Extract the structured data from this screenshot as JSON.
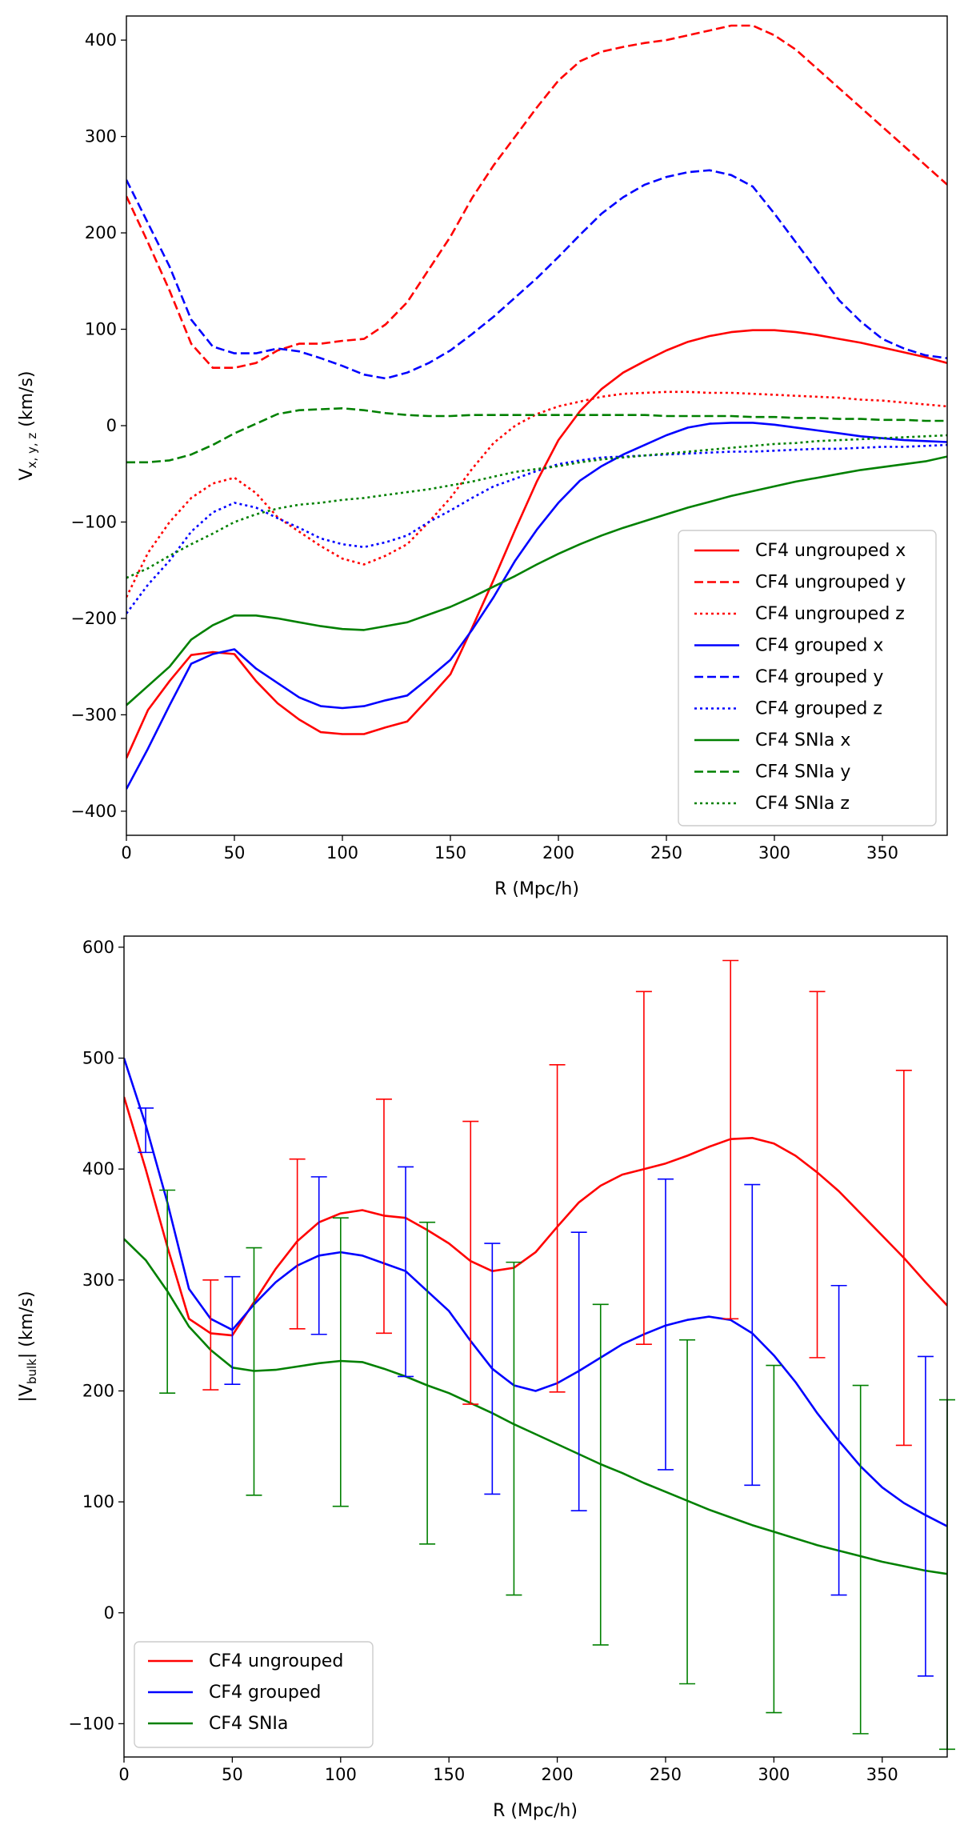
{
  "chart_data": [
    {
      "type": "line",
      "title": "",
      "xlabel": "R (Mpc/h)",
      "ylabel": {
        "main": "V",
        "sub": "x, y, z",
        "suffix": " (km/s)"
      },
      "xlim": [
        0,
        380
      ],
      "ylim": [
        -425,
        425
      ],
      "xticks": [
        0,
        50,
        100,
        150,
        200,
        250,
        300,
        350
      ],
      "yticks": [
        -400,
        -300,
        -200,
        -100,
        0,
        100,
        200,
        300,
        400
      ],
      "grid": false,
      "legend_position": "lower-right",
      "x": [
        0,
        10,
        20,
        30,
        40,
        50,
        60,
        70,
        80,
        90,
        100,
        110,
        120,
        130,
        140,
        150,
        160,
        170,
        180,
        190,
        200,
        210,
        220,
        230,
        240,
        250,
        260,
        270,
        280,
        290,
        300,
        310,
        320,
        330,
        340,
        350,
        360,
        370,
        380
      ],
      "series": [
        {
          "name": "CF4 ungrouped x",
          "color": "#ff0000",
          "dash": "solid",
          "values": [
            -345,
            -295,
            -265,
            -238,
            -235,
            -237,
            -265,
            -288,
            -305,
            -318,
            -320,
            -320,
            -313,
            -307,
            -283,
            -258,
            -210,
            -160,
            -108,
            -58,
            -15,
            15,
            38,
            55,
            67,
            78,
            87,
            93,
            97,
            99,
            99,
            97,
            94,
            90,
            86,
            81,
            76,
            71,
            65
          ]
        },
        {
          "name": "CF4 ungrouped y",
          "color": "#ff0000",
          "dash": "dashed",
          "values": [
            238,
            190,
            140,
            85,
            60,
            60,
            65,
            78,
            85,
            85,
            88,
            90,
            105,
            128,
            162,
            196,
            236,
            270,
            300,
            330,
            358,
            378,
            388,
            393,
            397,
            400,
            405,
            410,
            415,
            415,
            405,
            390,
            370,
            350,
            330,
            310,
            290,
            270,
            250
          ]
        },
        {
          "name": "CF4 ungrouped z",
          "color": "#ff0000",
          "dash": "dotted",
          "values": [
            -178,
            -132,
            -100,
            -75,
            -60,
            -54,
            -70,
            -95,
            -110,
            -125,
            -138,
            -144,
            -135,
            -123,
            -100,
            -75,
            -45,
            -18,
            0,
            12,
            20,
            25,
            30,
            33,
            34,
            35,
            35,
            34,
            34,
            33,
            32,
            31,
            30,
            29,
            27,
            26,
            24,
            22,
            20
          ]
        },
        {
          "name": "CF4 grouped x",
          "color": "#0000ff",
          "dash": "solid",
          "values": [
            -377,
            -335,
            -290,
            -247,
            -237,
            -232,
            -252,
            -267,
            -282,
            -291,
            -293,
            -291,
            -285,
            -280,
            -262,
            -243,
            -212,
            -178,
            -140,
            -108,
            -80,
            -57,
            -42,
            -30,
            -20,
            -10,
            -2,
            2,
            3,
            3,
            1,
            -2,
            -5,
            -8,
            -11,
            -13,
            -15,
            -16,
            -17
          ]
        },
        {
          "name": "CF4 grouped y",
          "color": "#0000ff",
          "dash": "dashed",
          "values": [
            255,
            210,
            165,
            110,
            82,
            75,
            75,
            80,
            77,
            70,
            62,
            53,
            49,
            55,
            65,
            78,
            95,
            113,
            133,
            153,
            175,
            198,
            220,
            237,
            250,
            258,
            263,
            265,
            260,
            248,
            220,
            190,
            160,
            130,
            108,
            90,
            80,
            73,
            70
          ]
        },
        {
          "name": "CF4 grouped z",
          "color": "#0000ff",
          "dash": "dotted",
          "values": [
            -195,
            -165,
            -140,
            -110,
            -90,
            -80,
            -85,
            -96,
            -106,
            -117,
            -123,
            -126,
            -121,
            -114,
            -100,
            -88,
            -75,
            -63,
            -55,
            -47,
            -40,
            -36,
            -33,
            -32,
            -31,
            -30,
            -29,
            -28,
            -27,
            -27,
            -26,
            -25,
            -24,
            -24,
            -23,
            -22,
            -22,
            -21,
            -20
          ]
        },
        {
          "name": "CF4 SNIa x",
          "color": "#008000",
          "dash": "solid",
          "values": [
            -290,
            -270,
            -250,
            -222,
            -207,
            -197,
            -197,
            -200,
            -204,
            -208,
            -211,
            -212,
            -208,
            -204,
            -196,
            -188,
            -178,
            -167,
            -156,
            -144,
            -133,
            -123,
            -114,
            -106,
            -99,
            -92,
            -85,
            -79,
            -73,
            -68,
            -63,
            -58,
            -54,
            -50,
            -46,
            -43,
            -40,
            -37,
            -32
          ]
        },
        {
          "name": "CF4 SNIa y",
          "color": "#008000",
          "dash": "dashed",
          "values": [
            -38,
            -38,
            -36,
            -30,
            -20,
            -8,
            2,
            12,
            16,
            17,
            18,
            16,
            13,
            11,
            10,
            10,
            11,
            11,
            11,
            11,
            11,
            11,
            11,
            11,
            11,
            10,
            10,
            10,
            10,
            9,
            9,
            8,
            8,
            7,
            7,
            6,
            6,
            5,
            5
          ]
        },
        {
          "name": "CF4 SNIa z",
          "color": "#008000",
          "dash": "dotted",
          "values": [
            -158,
            -148,
            -135,
            -123,
            -112,
            -100,
            -92,
            -86,
            -82,
            -80,
            -77,
            -75,
            -72,
            -69,
            -66,
            -62,
            -58,
            -53,
            -48,
            -45,
            -42,
            -38,
            -35,
            -33,
            -31,
            -29,
            -27,
            -25,
            -23,
            -21,
            -19,
            -18,
            -16,
            -15,
            -14,
            -13,
            -12,
            -11,
            -10
          ]
        }
      ]
    },
    {
      "type": "line",
      "title": "",
      "xlabel": "R (Mpc/h)",
      "ylabel": {
        "main": "|V",
        "sub": "bulk",
        "suffix": "| (km/s)"
      },
      "xlim": [
        0,
        380
      ],
      "ylim": [
        -130,
        610
      ],
      "xticks": [
        0,
        50,
        100,
        150,
        200,
        250,
        300,
        350
      ],
      "yticks": [
        -100,
        0,
        100,
        200,
        300,
        400,
        500,
        600
      ],
      "grid": false,
      "legend_position": "lower-left",
      "x": [
        0,
        10,
        20,
        30,
        40,
        50,
        60,
        70,
        80,
        90,
        100,
        110,
        120,
        130,
        140,
        150,
        160,
        170,
        180,
        190,
        200,
        210,
        220,
        230,
        240,
        250,
        260,
        270,
        280,
        290,
        300,
        310,
        320,
        330,
        340,
        350,
        360,
        370,
        380
      ],
      "series": [
        {
          "name": "CF4 ungrouped",
          "color": "#ff0000",
          "values": [
            465,
            400,
            330,
            265,
            252,
            250,
            280,
            310,
            335,
            352,
            360,
            363,
            358,
            356,
            345,
            333,
            317,
            308,
            311,
            325,
            348,
            370,
            385,
            395,
            400,
            405,
            412,
            420,
            427,
            428,
            423,
            412,
            397,
            380,
            360,
            340,
            320,
            298,
            277
          ],
          "errorbars": [
            {
              "x": 40,
              "low": 201,
              "high": 300
            },
            {
              "x": 80,
              "low": 256,
              "high": 409
            },
            {
              "x": 120,
              "low": 252,
              "high": 463
            },
            {
              "x": 160,
              "low": 188,
              "high": 443
            },
            {
              "x": 200,
              "low": 199,
              "high": 494
            },
            {
              "x": 240,
              "low": 242,
              "high": 560
            },
            {
              "x": 280,
              "low": 265,
              "high": 588
            },
            {
              "x": 320,
              "low": 230,
              "high": 560
            },
            {
              "x": 360,
              "low": 151,
              "high": 489
            }
          ]
        },
        {
          "name": "CF4 grouped",
          "color": "#0000ff",
          "values": [
            500,
            440,
            370,
            292,
            265,
            255,
            278,
            298,
            313,
            322,
            325,
            322,
            315,
            308,
            290,
            272,
            245,
            220,
            205,
            200,
            207,
            218,
            230,
            242,
            251,
            259,
            264,
            267,
            264,
            252,
            232,
            208,
            180,
            155,
            132,
            113,
            99,
            88,
            78
          ],
          "errorbars": [
            {
              "x": 10,
              "low": 415,
              "high": 455
            },
            {
              "x": 50,
              "low": 206,
              "high": 303
            },
            {
              "x": 90,
              "low": 251,
              "high": 393
            },
            {
              "x": 130,
              "low": 213,
              "high": 402
            },
            {
              "x": 170,
              "low": 107,
              "high": 333
            },
            {
              "x": 210,
              "low": 92,
              "high": 343
            },
            {
              "x": 250,
              "low": 129,
              "high": 391
            },
            {
              "x": 290,
              "low": 115,
              "high": 386
            },
            {
              "x": 330,
              "low": 16,
              "high": 295
            },
            {
              "x": 370,
              "low": -57,
              "high": 231
            }
          ]
        },
        {
          "name": "CF4 SNIa",
          "color": "#008000",
          "values": [
            337,
            318,
            290,
            258,
            237,
            221,
            218,
            219,
            222,
            225,
            227,
            226,
            220,
            213,
            205,
            198,
            189,
            180,
            170,
            161,
            152,
            143,
            134,
            126,
            117,
            109,
            101,
            93,
            86,
            79,
            73,
            67,
            61,
            56,
            51,
            46,
            42,
            38,
            35
          ],
          "errorbars": [
            {
              "x": 20,
              "low": 198,
              "high": 381
            },
            {
              "x": 60,
              "low": 106,
              "high": 329
            },
            {
              "x": 100,
              "low": 96,
              "high": 356
            },
            {
              "x": 140,
              "low": 62,
              "high": 352
            },
            {
              "x": 180,
              "low": 16,
              "high": 316
            },
            {
              "x": 220,
              "low": -29,
              "high": 278
            },
            {
              "x": 260,
              "low": -64,
              "high": 246
            },
            {
              "x": 300,
              "low": -90,
              "high": 223
            },
            {
              "x": 340,
              "low": -109,
              "high": 205
            },
            {
              "x": 380,
              "low": -123,
              "high": 192
            }
          ]
        }
      ]
    }
  ]
}
